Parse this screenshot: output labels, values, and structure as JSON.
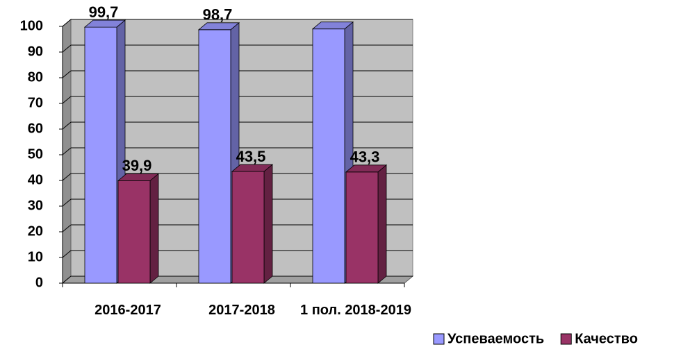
{
  "chart_data": {
    "type": "bar3d",
    "categories": [
      "2016-2017",
      "2017-2018",
      "1 пол. 2018-2019"
    ],
    "series": [
      {
        "name": "Успеваемость",
        "color": "#9999ff",
        "values": [
          99.7,
          98.7,
          99
        ],
        "value_labels": [
          "99,7",
          "98,7",
          null
        ]
      },
      {
        "name": "Качество",
        "color": "#993366",
        "values": [
          39.9,
          43.5,
          43.3
        ],
        "value_labels": [
          "39,9",
          "43,5",
          "43,3"
        ]
      }
    ],
    "ylim": [
      0,
      100
    ],
    "yticks": [
      0,
      10,
      20,
      30,
      40,
      50,
      60,
      70,
      80,
      90,
      100
    ],
    "grid": true,
    "legend": "bottom-right"
  }
}
